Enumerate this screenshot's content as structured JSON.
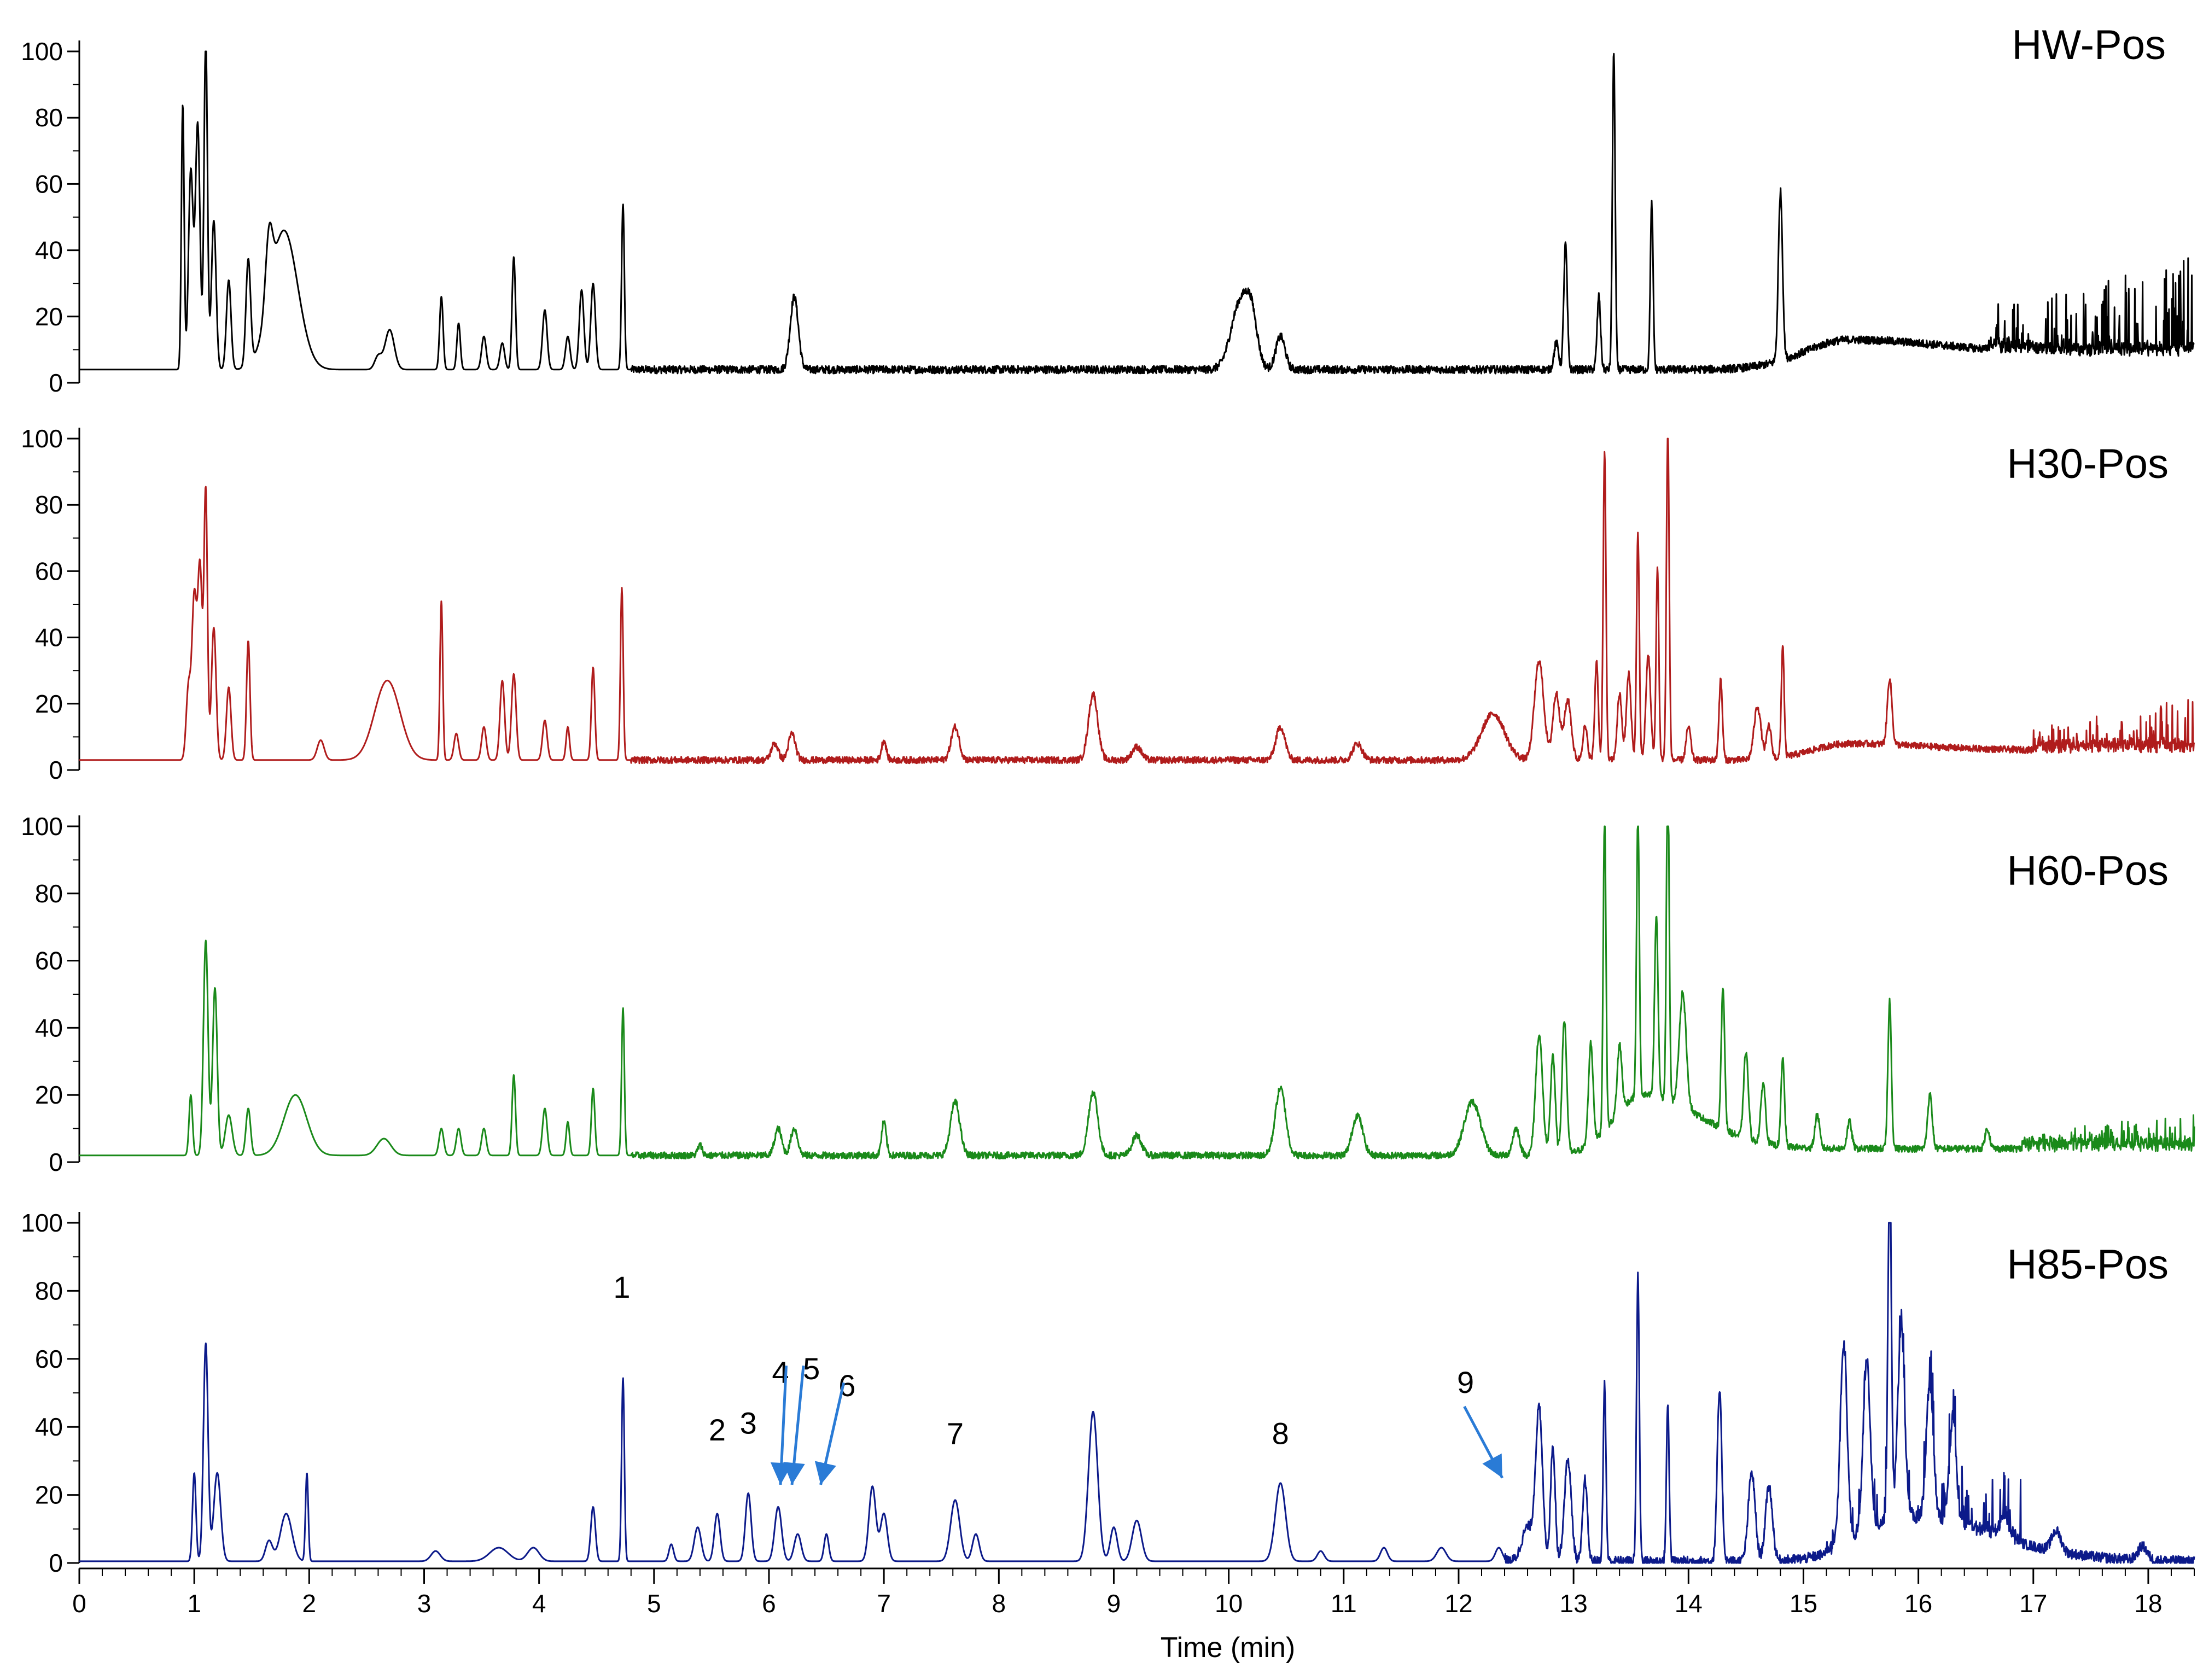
{
  "chart_data": {
    "type": "line",
    "xlabel": "Time (min)",
    "xlim": [
      0,
      18.4
    ],
    "x_ticks": [
      0,
      1,
      2,
      3,
      4,
      5,
      6,
      7,
      8,
      9,
      10,
      11,
      12,
      13,
      14,
      15,
      16,
      17,
      18
    ],
    "ylim": [
      0,
      100
    ],
    "y_ticks": [
      0,
      20,
      40,
      60,
      80,
      100
    ],
    "panels": [
      {
        "name": "HW-Pos",
        "color": "#000000",
        "baseline": 4,
        "noise": {
          "start": 4.8,
          "amp": 1.2
        },
        "hump": {
          "center": 15.4,
          "width": 0.55,
          "height": 9,
          "tail": 5
        },
        "tail_spikes": {
          "start": 16.6,
          "end": 18.4,
          "max": 30
        },
        "peaks": [
          [
            0.9,
            80,
            0.012
          ],
          [
            0.97,
            60,
            0.02
          ],
          [
            1.03,
            74,
            0.02
          ],
          [
            1.1,
            100,
            0.015
          ],
          [
            1.17,
            45,
            0.02
          ],
          [
            1.3,
            27,
            0.02
          ],
          [
            1.47,
            32,
            0.02
          ],
          [
            1.65,
            20,
            0.03
          ],
          [
            1.78,
            42,
            0.12
          ],
          [
            2.6,
            4,
            0.03
          ],
          [
            2.7,
            12,
            0.04
          ],
          [
            3.15,
            22,
            0.015
          ],
          [
            3.3,
            14,
            0.015
          ],
          [
            3.52,
            10,
            0.02
          ],
          [
            3.68,
            8,
            0.02
          ],
          [
            3.78,
            34,
            0.015
          ],
          [
            4.05,
            18,
            0.02
          ],
          [
            4.25,
            10,
            0.02
          ],
          [
            4.37,
            24,
            0.02
          ],
          [
            4.47,
            26,
            0.02
          ],
          [
            4.73,
            50,
            0.012
          ],
          [
            6.22,
            22,
            0.035
          ],
          [
            10.1,
            20,
            0.08
          ],
          [
            10.2,
            12,
            0.05
          ],
          [
            10.45,
            10,
            0.04
          ],
          [
            12.85,
            8,
            0.02
          ],
          [
            12.93,
            38,
            0.015
          ],
          [
            13.22,
            22,
            0.015
          ],
          [
            13.35,
            96,
            0.012
          ],
          [
            13.68,
            50,
            0.012
          ],
          [
            14.8,
            51,
            0.018
          ]
        ]
      },
      {
        "name": "H30-Pos",
        "color": "#b01c1c",
        "baseline": 3,
        "noise": {
          "start": 4.8,
          "amp": 1.0
        },
        "hump": {
          "center": 15.4,
          "width": 0.45,
          "height": 5,
          "tail": 3
        },
        "tail_spikes": {
          "start": 17.0,
          "end": 18.4,
          "max": 16
        },
        "peaks": [
          [
            0.95,
            22,
            0.02
          ],
          [
            1.0,
            48,
            0.02
          ],
          [
            1.05,
            58,
            0.02
          ],
          [
            1.1,
            80,
            0.015
          ],
          [
            1.17,
            40,
            0.02
          ],
          [
            1.3,
            22,
            0.02
          ],
          [
            1.47,
            36,
            0.015
          ],
          [
            2.1,
            6,
            0.03
          ],
          [
            2.68,
            24,
            0.11
          ],
          [
            3.15,
            48,
            0.012
          ],
          [
            3.28,
            8,
            0.02
          ],
          [
            3.52,
            10,
            0.02
          ],
          [
            3.68,
            24,
            0.02
          ],
          [
            3.78,
            26,
            0.02
          ],
          [
            4.05,
            12,
            0.02
          ],
          [
            4.25,
            10,
            0.015
          ],
          [
            4.47,
            28,
            0.015
          ],
          [
            4.72,
            52,
            0.012
          ],
          [
            6.05,
            5,
            0.03
          ],
          [
            6.2,
            8,
            0.03
          ],
          [
            7.0,
            6,
            0.02
          ],
          [
            7.62,
            10,
            0.035
          ],
          [
            8.82,
            20,
            0.04
          ],
          [
            9.2,
            4,
            0.04
          ],
          [
            10.45,
            10,
            0.04
          ],
          [
            11.12,
            5,
            0.04
          ],
          [
            12.3,
            14,
            0.1
          ],
          [
            12.7,
            30,
            0.04
          ],
          [
            12.85,
            20,
            0.03
          ],
          [
            12.95,
            18,
            0.03
          ],
          [
            13.1,
            10,
            0.02
          ],
          [
            13.2,
            30,
            0.015
          ],
          [
            13.27,
            93,
            0.012
          ],
          [
            13.4,
            20,
            0.02
          ],
          [
            13.48,
            26,
            0.02
          ],
          [
            13.56,
            68,
            0.012
          ],
          [
            13.65,
            32,
            0.02
          ],
          [
            13.73,
            58,
            0.012
          ],
          [
            13.82,
            100,
            0.012
          ],
          [
            14.0,
            10,
            0.02
          ],
          [
            14.28,
            24,
            0.015
          ],
          [
            14.6,
            16,
            0.03
          ],
          [
            14.7,
            10,
            0.02
          ],
          [
            14.82,
            34,
            0.012
          ],
          [
            15.75,
            20,
            0.02
          ]
        ]
      },
      {
        "name": "H60-Pos",
        "color": "#1a8a1a",
        "baseline": 2,
        "noise": {
          "start": 4.8,
          "amp": 1.0
        },
        "hump": {
          "center": 13.6,
          "width": 0.35,
          "height": 18,
          "tail": 2
        },
        "tail_spikes": {
          "start": 16.9,
          "end": 18.4,
          "max": 10
        },
        "peaks": [
          [
            0.97,
            18,
            0.015
          ],
          [
            1.1,
            64,
            0.02
          ],
          [
            1.18,
            50,
            0.02
          ],
          [
            1.3,
            12,
            0.03
          ],
          [
            1.47,
            14,
            0.02
          ],
          [
            1.88,
            18,
            0.1
          ],
          [
            2.65,
            5,
            0.06
          ],
          [
            3.15,
            8,
            0.02
          ],
          [
            3.3,
            8,
            0.02
          ],
          [
            3.52,
            8,
            0.02
          ],
          [
            3.78,
            24,
            0.015
          ],
          [
            4.05,
            14,
            0.02
          ],
          [
            4.25,
            10,
            0.015
          ],
          [
            4.47,
            20,
            0.015
          ],
          [
            4.73,
            44,
            0.012
          ],
          [
            5.4,
            3,
            0.02
          ],
          [
            6.08,
            8,
            0.03
          ],
          [
            6.22,
            8,
            0.03
          ],
          [
            7.0,
            10,
            0.02
          ],
          [
            7.62,
            16,
            0.04
          ],
          [
            8.82,
            19,
            0.04
          ],
          [
            9.2,
            6,
            0.04
          ],
          [
            10.45,
            20,
            0.045
          ],
          [
            11.12,
            12,
            0.045
          ],
          [
            12.12,
            16,
            0.07
          ],
          [
            12.5,
            8,
            0.03
          ],
          [
            12.7,
            36,
            0.03
          ],
          [
            12.82,
            30,
            0.02
          ],
          [
            12.92,
            40,
            0.02
          ],
          [
            13.15,
            30,
            0.02
          ],
          [
            13.27,
            94,
            0.012
          ],
          [
            13.4,
            20,
            0.02
          ],
          [
            13.56,
            84,
            0.012
          ],
          [
            13.72,
            54,
            0.015
          ],
          [
            13.82,
            100,
            0.012
          ],
          [
            13.95,
            34,
            0.03
          ],
          [
            14.3,
            42,
            0.015
          ],
          [
            14.5,
            26,
            0.02
          ],
          [
            14.65,
            18,
            0.02
          ],
          [
            14.82,
            26,
            0.015
          ],
          [
            15.12,
            10,
            0.02
          ],
          [
            15.4,
            8,
            0.02
          ],
          [
            15.75,
            44,
            0.015
          ],
          [
            16.1,
            16,
            0.02
          ],
          [
            16.6,
            6,
            0.02
          ]
        ]
      },
      {
        "name": "H85-Pos",
        "color": "#0c1a8a",
        "baseline": 0.5,
        "noise": {
          "start": 12.4,
          "amp": 1.5
        },
        "hump": {
          "center": 15.9,
          "width": 0.55,
          "height": 12,
          "tail": 0
        },
        "tail_spikes": {
          "start": 15.2,
          "end": 16.9,
          "max": 20
        },
        "peaks": [
          [
            1.0,
            26,
            0.015
          ],
          [
            1.1,
            64,
            0.02
          ],
          [
            1.2,
            26,
            0.03
          ],
          [
            1.65,
            6,
            0.03
          ],
          [
            1.8,
            14,
            0.05
          ],
          [
            1.98,
            26,
            0.012
          ],
          [
            3.1,
            3,
            0.04
          ],
          [
            3.65,
            4,
            0.08
          ],
          [
            3.95,
            4,
            0.05
          ],
          [
            4.47,
            16,
            0.02
          ],
          [
            4.73,
            54,
            0.012
          ],
          [
            5.15,
            5,
            0.02
          ],
          [
            5.38,
            10,
            0.03
          ],
          [
            5.55,
            14,
            0.025
          ],
          [
            5.82,
            20,
            0.025
          ],
          [
            6.08,
            16,
            0.03
          ],
          [
            6.25,
            8,
            0.03
          ],
          [
            6.5,
            8,
            0.02
          ],
          [
            6.9,
            22,
            0.03
          ],
          [
            7.0,
            14,
            0.03
          ],
          [
            7.62,
            18,
            0.04
          ],
          [
            7.8,
            8,
            0.03
          ],
          [
            8.82,
            44,
            0.04
          ],
          [
            9.0,
            10,
            0.03
          ],
          [
            9.2,
            12,
            0.04
          ],
          [
            10.45,
            23,
            0.045
          ],
          [
            10.8,
            3,
            0.03
          ],
          [
            11.35,
            4,
            0.03
          ],
          [
            11.85,
            4,
            0.04
          ],
          [
            12.35,
            4,
            0.03
          ],
          [
            12.6,
            10,
            0.05
          ],
          [
            12.7,
            44,
            0.03
          ],
          [
            12.82,
            34,
            0.02
          ],
          [
            12.95,
            30,
            0.03
          ],
          [
            13.1,
            24,
            0.02
          ],
          [
            13.27,
            52,
            0.012
          ],
          [
            13.56,
            84,
            0.012
          ],
          [
            13.82,
            46,
            0.012
          ],
          [
            14.27,
            50,
            0.02
          ],
          [
            14.55,
            26,
            0.03
          ],
          [
            14.7,
            22,
            0.03
          ],
          [
            15.35,
            58,
            0.03
          ],
          [
            15.55,
            50,
            0.03
          ],
          [
            15.75,
            100,
            0.015
          ],
          [
            15.85,
            55,
            0.03
          ],
          [
            16.1,
            40,
            0.03
          ],
          [
            16.3,
            30,
            0.03
          ],
          [
            16.75,
            6,
            0.03
          ],
          [
            17.2,
            6,
            0.04
          ],
          [
            17.95,
            4,
            0.04
          ]
        ]
      }
    ],
    "annotations": [
      {
        "text": "1",
        "x": 4.72,
        "y": 78
      },
      {
        "text": "2",
        "x": 5.55,
        "y": 36
      },
      {
        "text": "3",
        "x": 5.82,
        "y": 38
      },
      {
        "text": "4",
        "x": 6.1,
        "y": 53
      },
      {
        "text": "5",
        "x": 6.37,
        "y": 54
      },
      {
        "text": "6",
        "x": 6.68,
        "y": 49
      },
      {
        "text": "7",
        "x": 7.62,
        "y": 35
      },
      {
        "text": "8",
        "x": 10.45,
        "y": 35
      },
      {
        "text": "9",
        "x": 12.06,
        "y": 50
      }
    ],
    "arrows": [
      {
        "from": [
          6.15,
          58
        ],
        "to": [
          6.1,
          23
        ]
      },
      {
        "from": [
          6.3,
          58
        ],
        "to": [
          6.2,
          23
        ]
      },
      {
        "from": [
          6.65,
          53
        ],
        "to": [
          6.45,
          23
        ]
      },
      {
        "from": [
          12.05,
          46
        ],
        "to": [
          12.38,
          25
        ]
      }
    ],
    "arrow_color": "#2a7bd6"
  }
}
